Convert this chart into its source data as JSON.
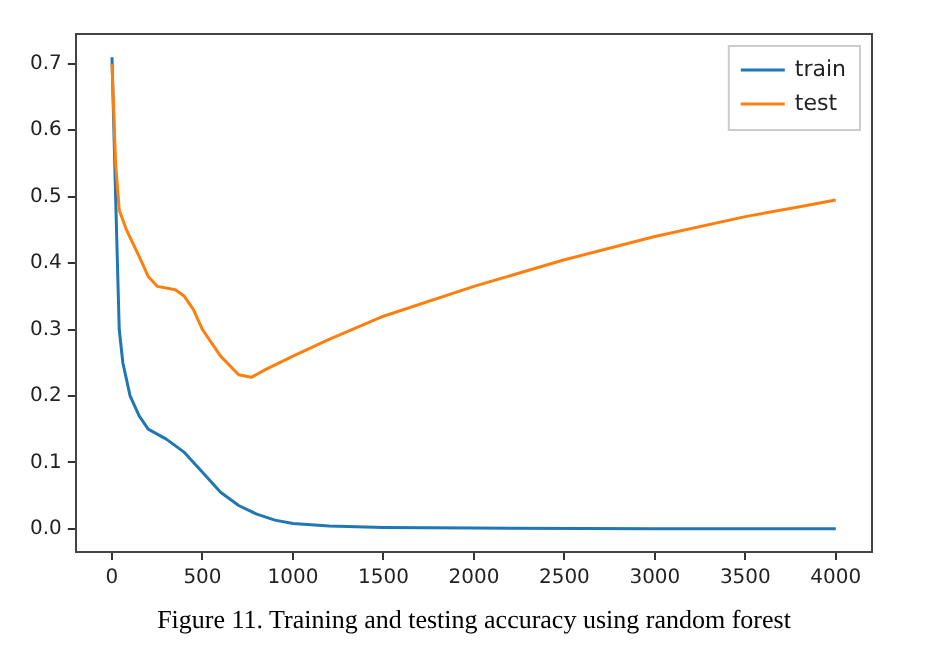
{
  "chart_data": {
    "type": "line",
    "annotations": [
      "Figure 11. Training and testing accuracy using random forest"
    ],
    "xlim": [
      -200,
      4200
    ],
    "xticks": [
      0,
      500,
      1000,
      1500,
      2000,
      2500,
      3000,
      3500,
      4000
    ],
    "ylim": [
      -0.035,
      0.745
    ],
    "yticks": [
      {
        "value": 0,
        "label": "0.0"
      },
      0.1,
      0.2,
      0.3,
      0.4,
      0.5,
      0.6,
      0.7
    ],
    "grid": false,
    "legend": "top right",
    "marker": "none",
    "line_style": "solid",
    "series": [
      {
        "name": "train",
        "color": "#1f77b4",
        "x": [
          0,
          20,
          40,
          60,
          100,
          150,
          200,
          300,
          400,
          500,
          600,
          700,
          800,
          900,
          1000,
          1200,
          1500,
          2000,
          3000,
          4000
        ],
        "values": [
          0.71,
          0.5,
          0.3,
          0.25,
          0.2,
          0.17,
          0.15,
          0.135,
          0.115,
          0.085,
          0.055,
          0.035,
          0.022,
          0.013,
          0.008,
          0.004,
          0.002,
          0.001,
          0,
          0
        ]
      },
      {
        "name": "test",
        "color": "#ff7f0e",
        "x": [
          0,
          20,
          40,
          80,
          150,
          200,
          250,
          350,
          400,
          450,
          500,
          600,
          700,
          770,
          850,
          1000,
          1200,
          1500,
          2000,
          2500,
          3000,
          3500,
          3800,
          4000
        ],
        "values": [
          0.7,
          0.55,
          0.48,
          0.45,
          0.41,
          0.38,
          0.365,
          0.36,
          0.35,
          0.33,
          0.3,
          0.26,
          0.232,
          0.228,
          0.24,
          0.26,
          0.285,
          0.32,
          0.365,
          0.405,
          0.44,
          0.47,
          0.485,
          0.495
        ]
      }
    ]
  }
}
